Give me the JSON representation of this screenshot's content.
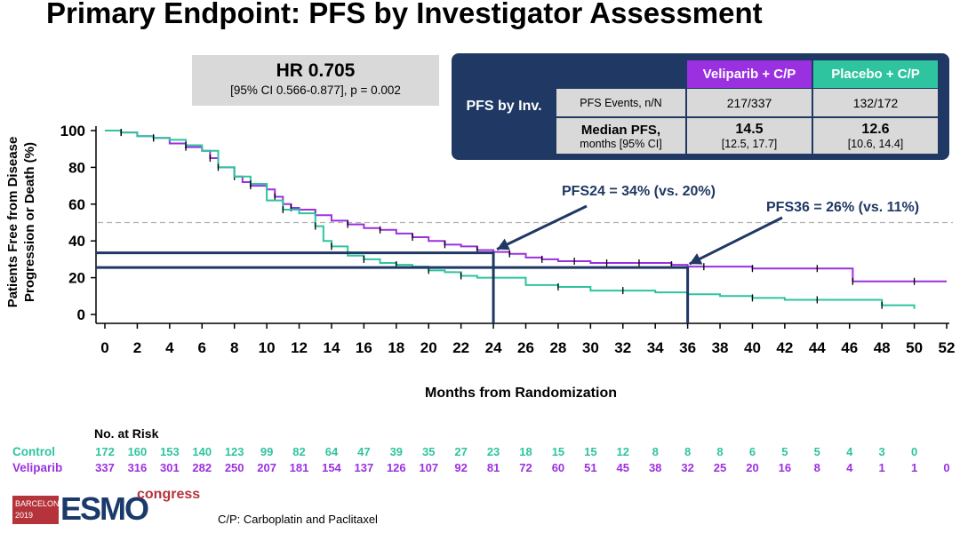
{
  "title": "Primary Endpoint: PFS by Investigator Assessment",
  "hr_box": {
    "main": "HR 0.705",
    "sub": "[95% CI 0.566-0.877], p = 0.002"
  },
  "pfs_table": {
    "label": "PFS by Inv.",
    "col_veliparib": "Veliparib + C/P",
    "col_placebo": "Placebo + C/P",
    "row1_label": "PFS Events, n/N",
    "row1_veliparib": "217/337",
    "row1_placebo": "132/172",
    "row2_label_main": "Median PFS,",
    "row2_label_sub": "months [95% CI]",
    "row2_veliparib_main": "14.5",
    "row2_veliparib_ci": "[12.5, 17.7]",
    "row2_placebo_main": "12.6",
    "row2_placebo_ci": "[10.6, 14.4]"
  },
  "colors": {
    "veliparib": "#9b30e0",
    "control": "#2ec4a0",
    "navy": "#1f3864",
    "dash": "#b0b0b0"
  },
  "chart_data": {
    "type": "line",
    "title": "",
    "xlabel": "Months from Randomization",
    "ylabel_line1": "Patients Free from Disease",
    "ylabel_line2": "Progression or Death (%)",
    "xlim": [
      0,
      52
    ],
    "ylim": [
      0,
      100
    ],
    "x_ticks": [
      0,
      2,
      4,
      6,
      8,
      10,
      12,
      14,
      16,
      18,
      20,
      22,
      24,
      26,
      28,
      30,
      32,
      34,
      36,
      38,
      40,
      42,
      44,
      46,
      48,
      50,
      52
    ],
    "y_ticks": [
      0,
      20,
      40,
      60,
      80,
      100
    ],
    "reference_line_y": 50,
    "series": [
      {
        "name": "Veliparib + C/P",
        "color": "#9b30e0",
        "x": [
          0,
          1,
          2,
          3,
          4,
          5,
          6,
          6.5,
          7,
          8,
          8.5,
          9,
          10,
          10.5,
          11,
          11.5,
          12,
          13,
          14,
          15,
          16,
          17,
          18,
          19,
          20,
          21,
          22,
          23,
          24,
          25,
          26,
          27,
          28,
          29,
          30,
          31,
          32,
          33,
          34,
          35,
          36,
          37,
          38,
          40,
          42,
          44,
          46,
          46.2,
          48,
          50,
          52
        ],
        "y": [
          100,
          99,
          97,
          96,
          93,
          91,
          89,
          85,
          80,
          75,
          72,
          70,
          68,
          64,
          60,
          58,
          57,
          54,
          51,
          49,
          47,
          46,
          44,
          42,
          40,
          38,
          37,
          35,
          34,
          33,
          31,
          30,
          29,
          29,
          28,
          28,
          28,
          28,
          28,
          27,
          26,
          26,
          26,
          25,
          25,
          25,
          25,
          18,
          18,
          18,
          18
        ]
      },
      {
        "name": "Placebo + C/P",
        "color": "#2ec4a0",
        "x": [
          0,
          1,
          2,
          3,
          4,
          5,
          6,
          7,
          8,
          9,
          10,
          11,
          12,
          13,
          13.5,
          14,
          15,
          16,
          17,
          18,
          19,
          20,
          21,
          22,
          23,
          24,
          26,
          28,
          30,
          32,
          34,
          36,
          38,
          40,
          42,
          44,
          46,
          48,
          50
        ],
        "y": [
          100,
          99,
          97,
          96,
          95,
          92,
          89,
          80,
          75,
          71,
          62,
          57,
          55,
          48,
          40,
          37,
          32,
          30,
          28,
          27,
          26,
          24,
          23,
          21,
          20,
          20,
          16,
          15,
          13,
          13,
          12,
          11,
          10,
          9,
          8,
          8,
          8,
          5,
          3
        ]
      }
    ],
    "annotations": [
      {
        "text": "PFS24 = 34% (vs. 20%)",
        "x": 24,
        "y": 34,
        "y_control": 20
      },
      {
        "text": "PFS36 = 26% (vs. 11%)",
        "x": 36,
        "y": 26,
        "y_control": 11
      }
    ]
  },
  "at_risk": {
    "title": "No. at Risk",
    "control_label": "Control",
    "veliparib_label": "Veliparib",
    "control": [
      "172",
      "160",
      "153",
      "140",
      "123",
      "99",
      "82",
      "64",
      "47",
      "39",
      "35",
      "27",
      "23",
      "18",
      "15",
      "15",
      "12",
      "8",
      "8",
      "8",
      "6",
      "5",
      "5",
      "4",
      "3",
      "0"
    ],
    "veliparib": [
      "337",
      "316",
      "301",
      "282",
      "250",
      "207",
      "181",
      "154",
      "137",
      "126",
      "107",
      "92",
      "81",
      "72",
      "60",
      "51",
      "45",
      "38",
      "32",
      "25",
      "20",
      "16",
      "8",
      "4",
      "1",
      "1",
      "0"
    ]
  },
  "logo": {
    "city": "BARCELONA",
    "year": "2019",
    "brand": "ESMO",
    "event": "congress"
  },
  "footnote": "C/P: Carboplatin and Paclitaxel"
}
